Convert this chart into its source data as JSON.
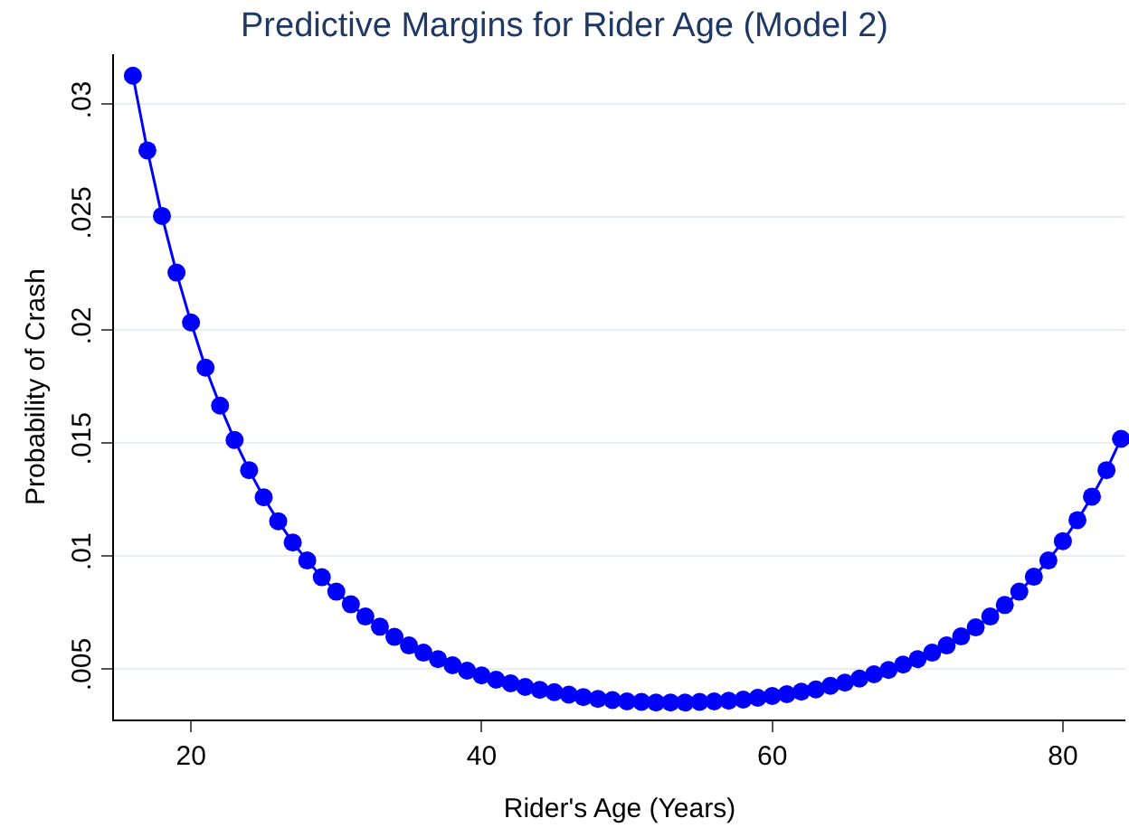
{
  "chart_data": {
    "type": "line",
    "title": "Predictive Margins for Rider Age (Model 2)",
    "xlabel": "Rider's Age (Years)",
    "ylabel": "Probability of Crash",
    "x": [
      16,
      17,
      18,
      19,
      20,
      21,
      22,
      23,
      24,
      25,
      26,
      27,
      28,
      29,
      30,
      31,
      32,
      33,
      34,
      35,
      36,
      37,
      38,
      39,
      40,
      41,
      42,
      43,
      44,
      45,
      46,
      47,
      48,
      49,
      50,
      51,
      52,
      53,
      54,
      55,
      56,
      57,
      58,
      59,
      60,
      61,
      62,
      63,
      64,
      65,
      66,
      67,
      68,
      69,
      70,
      71,
      72,
      73,
      74,
      75,
      76,
      77,
      78,
      79,
      80,
      81,
      82,
      83,
      84
    ],
    "series": [
      {
        "color": "#0000ff",
        "values": [
          0.03125,
          0.02794,
          0.02504,
          0.02253,
          0.02032,
          0.01832,
          0.01664,
          0.01512,
          0.01378,
          0.01258,
          0.01152,
          0.01058,
          0.00978,
          0.00904,
          0.0084,
          0.00784,
          0.0073,
          0.00685,
          0.0064,
          0.00602,
          0.0057,
          0.00541,
          0.00514,
          0.0049,
          0.00469,
          0.0045,
          0.00434,
          0.00418,
          0.00405,
          0.00395,
          0.00384,
          0.00373,
          0.00365,
          0.0036,
          0.00354,
          0.00352,
          0.00349,
          0.00349,
          0.00349,
          0.00352,
          0.00354,
          0.00357,
          0.00362,
          0.0037,
          0.00378,
          0.00386,
          0.00397,
          0.00407,
          0.00423,
          0.00437,
          0.00455,
          0.00474,
          0.00493,
          0.00517,
          0.00541,
          0.0057,
          0.00602,
          0.00642,
          0.00682,
          0.0073,
          0.00781,
          0.0084,
          0.00906,
          0.00978,
          0.01064,
          0.01157,
          0.01261,
          0.01378,
          0.01517
        ]
      }
    ],
    "xlim": [
      14.7,
      84.3
    ],
    "ylim": [
      0.00274,
      0.0322
    ],
    "xticks": [
      20,
      40,
      60,
      80
    ],
    "yticks": [
      {
        "value": 0.005,
        "label": ".005"
      },
      {
        "value": 0.01,
        "label": ".01"
      },
      {
        "value": 0.015,
        "label": ".015"
      },
      {
        "value": 0.02,
        "label": ".02"
      },
      {
        "value": 0.025,
        "label": ".025"
      },
      {
        "value": 0.03,
        "label": ".03"
      }
    ],
    "grid": "y",
    "marker": "circle",
    "line_style": "solid"
  }
}
